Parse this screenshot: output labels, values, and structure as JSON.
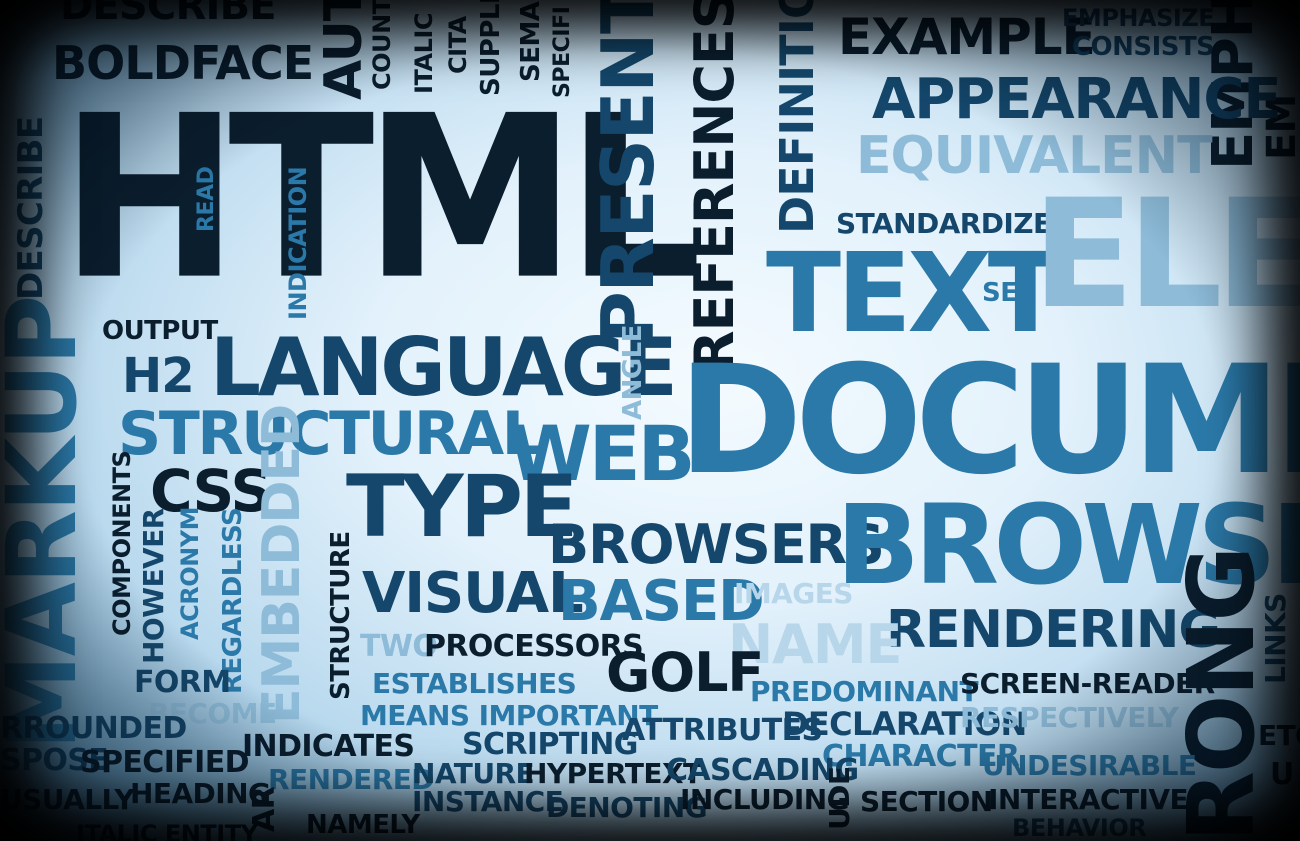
{
  "words": {
    "html": "HTML",
    "boldface": "BOLDFACE",
    "describe_top": "DESCRIBE",
    "describe_side": "DESCRIBE",
    "aut": "AUT",
    "count": "COUNT",
    "italic": "ITALIC",
    "cita": "CITA",
    "supple": "SUPPLE",
    "sema": "SEMA",
    "specifi": "SPECIFI",
    "present": "PRESENT",
    "references": "REFERENCES",
    "definitio": "DEFINITIO",
    "example": "EXAMPLE",
    "emphasize": "EMPHASIZE",
    "consists": "CONSISTS",
    "appearance": "APPEARANCE",
    "equivalent": "EQUIVALENT",
    "empha": "EMPHA",
    "em": "EM",
    "standardized": "STANDARDIZED",
    "text": "TEXT",
    "elem": "ELEM",
    "see": "SEE",
    "read": "READ",
    "indication": "INDICATION",
    "markup": "MARKUP",
    "output": "OUTPUT",
    "h2": "H2",
    "language": "LANGUAGE",
    "angle": "ANGLE",
    "document": "DOCUMEN",
    "structural": "STRUCTURAL",
    "web": "WEB",
    "css": "CSS",
    "type": "TYPE",
    "components": "COMPONENTS",
    "however": "HOWEVER",
    "acronym": "ACRONYM",
    "regardless": "REGARDLESS",
    "embedded": "EMBEDDED",
    "structure": "STRUCTURE",
    "browsers": "BROWSERS",
    "browser": "BROWSE",
    "visual": "VISUAL",
    "based": "BASED",
    "images": "IMAGES",
    "name": "NAME",
    "rendering": "RENDERING",
    "strong": "RONG",
    "links": "LINKS",
    "two": "TWO",
    "processors": "PROCESSORS",
    "golf": "GOLF",
    "form": "FORM",
    "establishes": "ESTABLISHES",
    "predominant": "PREDOMINANT",
    "screen_reader": "SCREEN-READER",
    "become": "BECOME",
    "rrounded": "RROUNDED",
    "means_important": "MEANS IMPORTANT",
    "attributes": "ATTRIBUTES",
    "declaration": "DECLARATION",
    "respectively": "RESPECTIVELY",
    "etc": "ETC",
    "spose": "SPOSE",
    "specified": "SPECIFIED",
    "indicates": "INDICATES",
    "scripting": "SCRIPTING",
    "character": "CHARACTER",
    "undesirable": "UNDESIRABLE",
    "rendered": "RENDERED",
    "nature": "NATURE",
    "hypertext": "HYPERTEXT",
    "cascading": "CASCADING",
    "usually": "USUALLY",
    "heading": "HEADING",
    "instance": "INSTANCE",
    "denoting": "DENOTING",
    "including": "INCLUDING",
    "section": "SECTION",
    "interactive": "INTERACTIVE",
    "italic_entity": "ITALIC ENTITY",
    "namely": "NAMELY",
    "behavior": "BEHAVIOR",
    "ar": "AR",
    "ude": "UDE",
    "u": "U"
  }
}
